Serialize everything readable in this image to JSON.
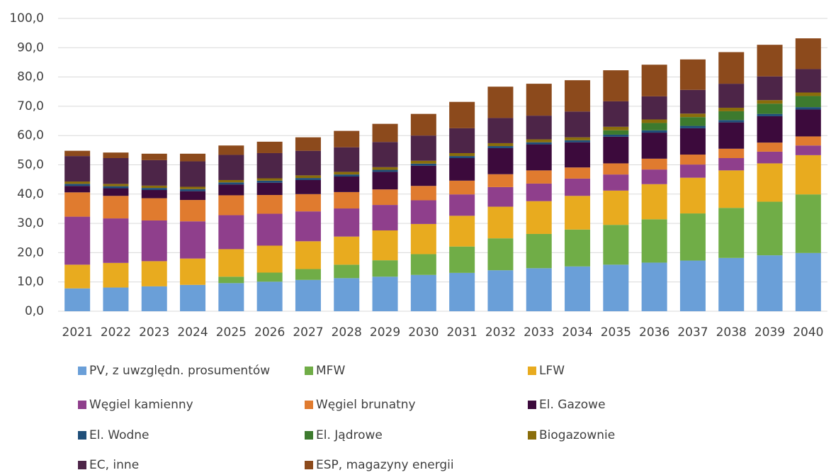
{
  "chart_data": {
    "type": "stacked_bar",
    "categories": [
      "2021",
      "2022",
      "2023",
      "2024",
      "2025",
      "2026",
      "2027",
      "2028",
      "2029",
      "2030",
      "2031",
      "2032",
      "2033",
      "2034",
      "2035",
      "2036",
      "2037",
      "2038",
      "2039",
      "2040"
    ],
    "ylim": [
      0,
      100
    ],
    "yticks": [
      {
        "value": 0,
        "label": "0,0"
      },
      {
        "value": 10,
        "label": "10,0"
      },
      {
        "value": 20,
        "label": "20,0"
      },
      {
        "value": 30,
        "label": "30,0"
      },
      {
        "value": 40,
        "label": "40,0"
      },
      {
        "value": 50,
        "label": "50,0"
      },
      {
        "value": 60,
        "label": "60,0"
      },
      {
        "value": 70,
        "label": "70,0"
      },
      {
        "value": 80,
        "label": "80,0"
      },
      {
        "value": 90,
        "label": "90,0"
      },
      {
        "value": 100,
        "label": "100,0"
      }
    ],
    "grid": true,
    "series": [
      {
        "name": "PV, z uwzględn. prosumentów",
        "color": "#6a9fd8",
        "values": [
          7.8,
          8.1,
          8.5,
          9.0,
          9.6,
          10.1,
          10.7,
          11.3,
          11.8,
          12.4,
          13.1,
          14.0,
          14.7,
          15.3,
          15.9,
          16.6,
          17.3,
          18.2,
          19.1,
          19.9
        ]
      },
      {
        "name": "MFW",
        "color": "#70ad47",
        "values": [
          0,
          0,
          0,
          0,
          2.2,
          3.1,
          3.7,
          4.6,
          5.6,
          7.1,
          9.0,
          10.9,
          11.7,
          12.6,
          13.6,
          14.8,
          16.1,
          17.1,
          18.3,
          20.0
        ]
      },
      {
        "name": "LFW",
        "color": "#e8ab1f",
        "values": [
          8.1,
          8.4,
          8.6,
          9.0,
          9.4,
          9.2,
          9.5,
          9.6,
          10.2,
          10.3,
          10.5,
          10.8,
          11.2,
          11.5,
          11.7,
          12.0,
          12.2,
          12.8,
          13.1,
          13.4
        ]
      },
      {
        "name": "Węgiel kamienny",
        "color": "#8f3f8c",
        "values": [
          16.4,
          15.2,
          13.9,
          12.7,
          11.6,
          10.9,
          10.2,
          9.6,
          8.7,
          8.1,
          7.3,
          6.7,
          6.0,
          5.9,
          5.5,
          5.0,
          4.5,
          4.2,
          4.0,
          3.3
        ]
      },
      {
        "name": "Węgiel brunatny",
        "color": "#e07b2f",
        "values": [
          8.3,
          7.7,
          7.6,
          7.3,
          6.8,
          6.4,
          5.9,
          5.6,
          5.3,
          4.9,
          4.7,
          4.4,
          4.5,
          3.8,
          3.8,
          3.7,
          3.4,
          3.2,
          3.1,
          3.1
        ]
      },
      {
        "name": "El. Gazowe",
        "color": "#3c0a3c",
        "values": [
          2.2,
          2.6,
          2.8,
          3.0,
          3.7,
          4.2,
          4.8,
          5.3,
          6.0,
          6.9,
          7.7,
          8.9,
          8.9,
          8.6,
          9.1,
          8.9,
          9.0,
          9.0,
          9.0,
          9.2
        ]
      },
      {
        "name": "El. Wodne",
        "color": "#1f4e79",
        "values": [
          0.7,
          0.7,
          0.7,
          0.7,
          0.7,
          0.7,
          0.7,
          0.7,
          0.7,
          0.7,
          0.7,
          0.7,
          0.7,
          0.7,
          0.7,
          0.8,
          0.8,
          0.8,
          0.8,
          0.8
        ]
      },
      {
        "name": "El. Jądrowe",
        "color": "#3d7a2e",
        "values": [
          0,
          0,
          0,
          0,
          0,
          0,
          0,
          0,
          0,
          0,
          0,
          0,
          0,
          0,
          1.5,
          2.5,
          3.0,
          3.0,
          3.5,
          3.8
        ]
      },
      {
        "name": "Biogazownie",
        "color": "#8a6d0b",
        "values": [
          0.8,
          0.8,
          0.8,
          0.8,
          0.8,
          0.8,
          0.9,
          0.9,
          0.9,
          1.0,
          1.0,
          1.0,
          1.0,
          1.0,
          1.2,
          1.2,
          1.2,
          1.2,
          1.2,
          1.2
        ]
      },
      {
        "name": "EC, inne",
        "color": "#4d2548",
        "values": [
          8.7,
          8.8,
          8.7,
          8.7,
          8.6,
          8.6,
          8.4,
          8.4,
          8.6,
          8.6,
          8.5,
          8.6,
          8.1,
          8.8,
          8.7,
          7.9,
          8.1,
          8.2,
          8.1,
          8.0
        ]
      },
      {
        "name": "ESP, magazyny energii",
        "color": "#8c4a1c",
        "values": [
          1.8,
          1.9,
          2.2,
          2.6,
          3.2,
          3.9,
          4.6,
          5.6,
          6.2,
          7.4,
          9.0,
          10.7,
          10.9,
          10.7,
          10.6,
          10.8,
          10.4,
          10.8,
          10.8,
          10.5
        ]
      }
    ]
  }
}
